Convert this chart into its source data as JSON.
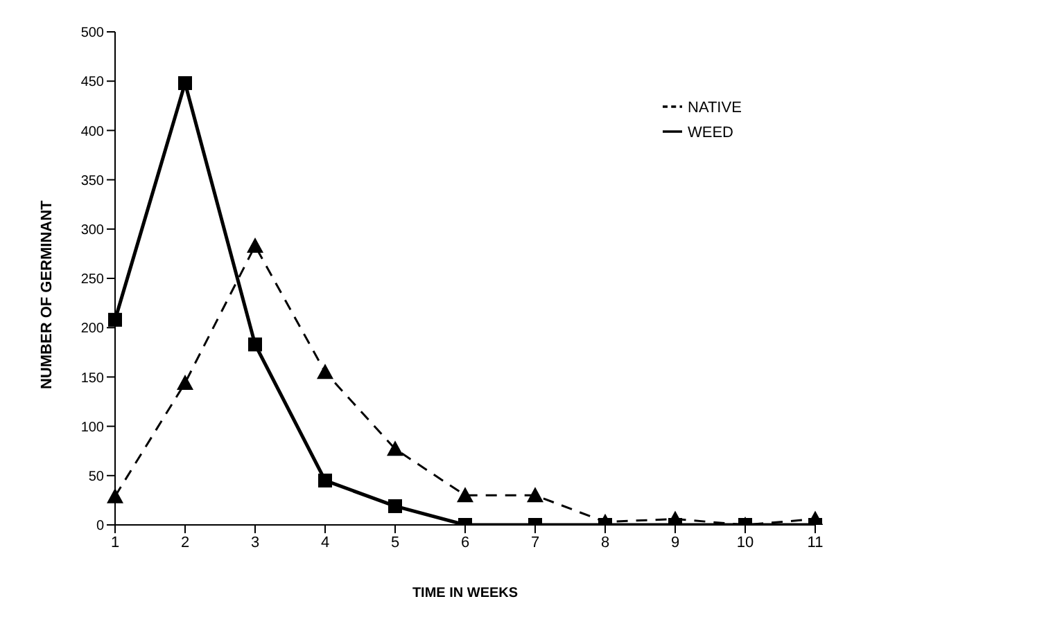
{
  "chart_data": {
    "type": "line",
    "xlabel": "TIME IN WEEKS",
    "ylabel": "NUMBER OF GERMINANT",
    "categories": [
      "1",
      "2",
      "3",
      "4",
      "5",
      "6",
      "7",
      "8",
      "9",
      "10",
      "11"
    ],
    "series": [
      {
        "name": "WEED",
        "color": "#000000",
        "marker": "square",
        "line_style": "solid",
        "values": [
          208,
          448,
          183,
          45,
          19,
          0,
          0,
          0,
          0,
          0,
          0
        ]
      },
      {
        "name": "NATIVE",
        "color": "#000000",
        "marker": "triangle",
        "line_style": "dashed",
        "values": [
          29,
          144,
          283,
          155,
          77,
          30,
          30,
          3,
          6,
          0,
          6
        ]
      }
    ],
    "ylim": [
      0,
      500
    ],
    "yticks": [
      0,
      50,
      100,
      150,
      200,
      250,
      300,
      350,
      400,
      450,
      500
    ],
    "grid": false,
    "legend": "top right"
  }
}
